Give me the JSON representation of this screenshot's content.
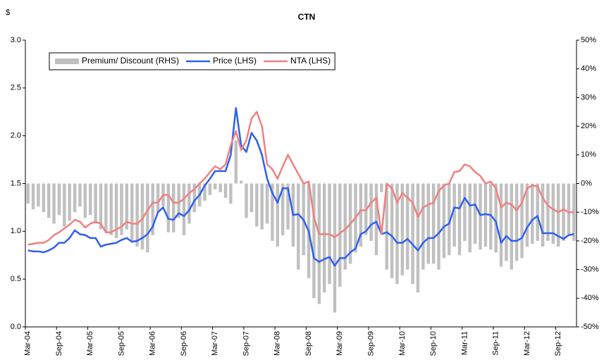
{
  "chart_data": {
    "type": "combo",
    "title": "CTN",
    "y_label": "$",
    "categories": [
      "Mar-04",
      null,
      null,
      null,
      null,
      null,
      "Sep-04",
      null,
      null,
      null,
      null,
      null,
      "Mar-05",
      null,
      null,
      null,
      null,
      null,
      "Sep-05",
      null,
      null,
      null,
      null,
      null,
      "Mar-06",
      null,
      null,
      null,
      null,
      null,
      "Sep-06",
      null,
      null,
      null,
      null,
      null,
      "Mar-07",
      null,
      null,
      null,
      null,
      null,
      "Sep-07",
      null,
      null,
      null,
      null,
      null,
      "Mar-08",
      null,
      null,
      null,
      null,
      null,
      "Sep-08",
      null,
      null,
      null,
      null,
      null,
      "Mar-09",
      null,
      null,
      null,
      null,
      null,
      "Sep-09",
      null,
      null,
      null,
      null,
      null,
      "Mar-10",
      null,
      null,
      null,
      null,
      null,
      "Sep-10",
      null,
      null,
      null,
      null,
      null,
      "Mar-11",
      null,
      null,
      null,
      null,
      null,
      "Sep-11",
      null,
      null,
      null,
      null,
      null,
      "Mar-12",
      null,
      null,
      null,
      null,
      null,
      "Sep-12",
      null,
      null,
      null
    ],
    "series": [
      {
        "name": "Premium/ Discount (RHS)",
        "type": "bar",
        "axis": "y2",
        "color": "#c0c0c0",
        "values": [
          -7,
          -9,
          -8,
          -10,
          -12,
          -14,
          -11,
          -15,
          -13,
          -10,
          -8,
          -12,
          -11,
          -14,
          -16,
          -17,
          -18,
          -19,
          -18,
          -16,
          -20,
          -22,
          -23,
          -24,
          -18,
          -10,
          -8,
          -17,
          -17,
          -12,
          -18,
          -14,
          -10,
          -8,
          -6,
          -4,
          -2,
          -3,
          -5,
          -7,
          15,
          1,
          -12,
          -10,
          -15,
          -16,
          -14,
          -20,
          -22,
          -18,
          -16,
          -22,
          -30,
          -25,
          -33,
          -40,
          -42,
          -38,
          -35,
          -45,
          -36,
          -30,
          -28,
          -24,
          -22,
          -18,
          -20,
          -25,
          -3,
          -30,
          -33,
          -35,
          -32,
          -30,
          -35,
          -38,
          -30,
          -28,
          -28,
          -30,
          -26,
          -25,
          -22,
          -25,
          -20,
          -24,
          -21,
          -23,
          -22,
          -23,
          -24,
          -29,
          -27,
          -30,
          -27,
          -26,
          -22,
          -21,
          -20,
          -22,
          -20,
          -21,
          -22,
          -20,
          -18,
          -20
        ]
      },
      {
        "name": "Price (LHS)",
        "type": "line",
        "color": "#2f5ff0",
        "values": [
          0.8,
          0.79,
          0.79,
          0.78,
          0.8,
          0.83,
          0.88,
          0.88,
          0.93,
          1.01,
          0.97,
          0.96,
          0.93,
          0.93,
          0.84,
          0.86,
          0.87,
          0.88,
          0.91,
          0.93,
          0.89,
          0.9,
          0.93,
          0.97,
          1.05,
          1.2,
          1.25,
          1.13,
          1.12,
          1.19,
          1.16,
          1.22,
          1.32,
          1.38,
          1.48,
          1.55,
          1.63,
          1.63,
          1.63,
          1.8,
          2.29,
          1.9,
          1.83,
          2.03,
          1.95,
          1.8,
          1.55,
          1.4,
          1.3,
          1.45,
          1.45,
          1.17,
          1.18,
          1.12,
          1.0,
          0.72,
          0.68,
          0.71,
          0.73,
          0.64,
          0.72,
          0.72,
          0.78,
          0.82,
          0.97,
          1.0,
          1.07,
          1.1,
          0.97,
          0.99,
          0.95,
          0.88,
          0.88,
          0.92,
          0.86,
          0.8,
          0.88,
          0.93,
          0.93,
          0.98,
          1.05,
          1.08,
          1.25,
          1.24,
          1.35,
          1.27,
          1.28,
          1.17,
          1.18,
          1.17,
          1.1,
          0.88,
          0.95,
          0.9,
          0.9,
          0.93,
          1.04,
          1.12,
          1.16,
          0.98,
          0.98,
          0.98,
          0.95,
          0.92,
          0.96,
          0.97
        ]
      },
      {
        "name": "NTA (LHS)",
        "type": "line",
        "color": "#f08080",
        "values": [
          0.86,
          0.87,
          0.88,
          0.88,
          0.91,
          0.96,
          0.99,
          1.03,
          1.07,
          1.12,
          1.1,
          1.04,
          1.08,
          1.1,
          1.08,
          0.99,
          0.99,
          1.02,
          1.05,
          1.1,
          1.08,
          1.08,
          1.13,
          1.22,
          1.3,
          1.3,
          1.38,
          1.38,
          1.3,
          1.3,
          1.34,
          1.4,
          1.44,
          1.5,
          1.55,
          1.62,
          1.68,
          1.65,
          1.7,
          1.9,
          2.05,
          1.85,
          1.95,
          2.18,
          2.25,
          2.1,
          1.7,
          1.65,
          1.55,
          1.68,
          1.8,
          1.7,
          1.6,
          1.5,
          1.52,
          1.15,
          0.97,
          0.97,
          0.97,
          0.94,
          0.98,
          1.02,
          1.08,
          1.14,
          1.22,
          1.22,
          1.3,
          1.35,
          0.97,
          1.5,
          1.45,
          1.3,
          1.4,
          1.35,
          1.3,
          1.15,
          1.25,
          1.28,
          1.3,
          1.42,
          1.48,
          1.5,
          1.62,
          1.63,
          1.7,
          1.68,
          1.62,
          1.58,
          1.5,
          1.52,
          1.45,
          1.25,
          1.3,
          1.28,
          1.22,
          1.3,
          1.45,
          1.48,
          1.47,
          1.35,
          1.27,
          1.23,
          1.2,
          1.23,
          1.2,
          1.2
        ]
      }
    ],
    "ylim": [
      0,
      3
    ],
    "yticks": [
      {
        "value": 0,
        "label": "0.0"
      },
      0.5,
      {
        "value": 1,
        "label": "1.0"
      },
      1.5,
      {
        "value": 2,
        "label": "2.0"
      },
      2.5,
      {
        "value": 3,
        "label": "3.0"
      }
    ],
    "y2lim": [
      -50,
      50
    ],
    "y2ticks": [
      {
        "value": -50,
        "label": "-50%"
      },
      {
        "value": -40,
        "label": "-40%"
      },
      {
        "value": -30,
        "label": "-30%"
      },
      {
        "value": -20,
        "label": "-20%"
      },
      {
        "value": -10,
        "label": "-10%"
      },
      {
        "value": 0,
        "label": "0%"
      },
      {
        "value": 10,
        "label": "10%"
      },
      {
        "value": 20,
        "label": "20%"
      },
      {
        "value": 30,
        "label": "30%"
      },
      {
        "value": 40,
        "label": "40%"
      },
      {
        "value": 50,
        "label": "50%"
      }
    ],
    "grid": false,
    "legend_position": "top-left"
  }
}
